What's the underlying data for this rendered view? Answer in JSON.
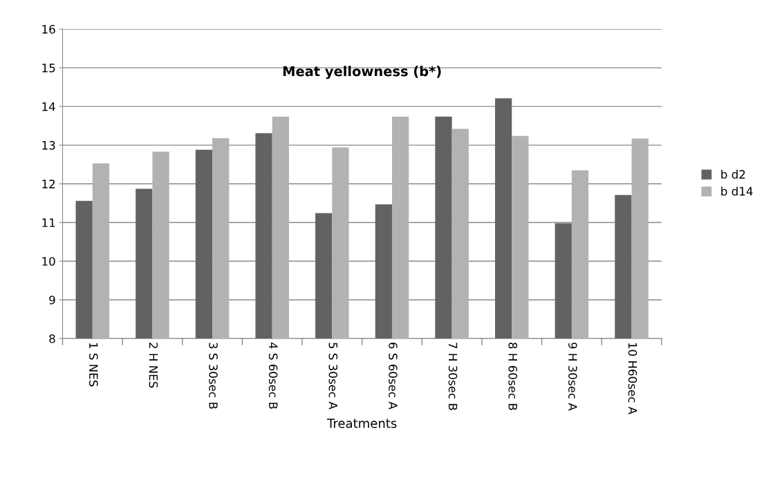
{
  "chart_data": {
    "type": "bar",
    "title": "Meat yellowness (b*)",
    "xlabel": "Treatments",
    "categories": [
      "1 S NES",
      "2 H NES",
      "3 S 30sec B",
      "4 S 60sec B",
      "5 S 30sec A",
      "6 S 60sec A",
      "7 H 30sec B",
      "8 H 60sec B",
      "9 H 30sec A",
      "10 H60sec A"
    ],
    "series": [
      {
        "name": "b d2",
        "color": "#626262",
        "values": [
          11.56,
          11.87,
          12.88,
          13.31,
          11.24,
          11.47,
          13.74,
          14.21,
          10.98,
          11.71
        ]
      },
      {
        "name": "b d14",
        "color": "#b2b2b2",
        "values": [
          12.53,
          12.83,
          13.18,
          13.74,
          12.94,
          13.74,
          13.42,
          13.24,
          12.35,
          13.17
        ]
      }
    ],
    "ylim": [
      8,
      16
    ],
    "yticks": [
      8,
      9,
      10,
      11,
      12,
      13,
      14,
      15,
      16
    ],
    "grid": "y",
    "legend": "right"
  }
}
